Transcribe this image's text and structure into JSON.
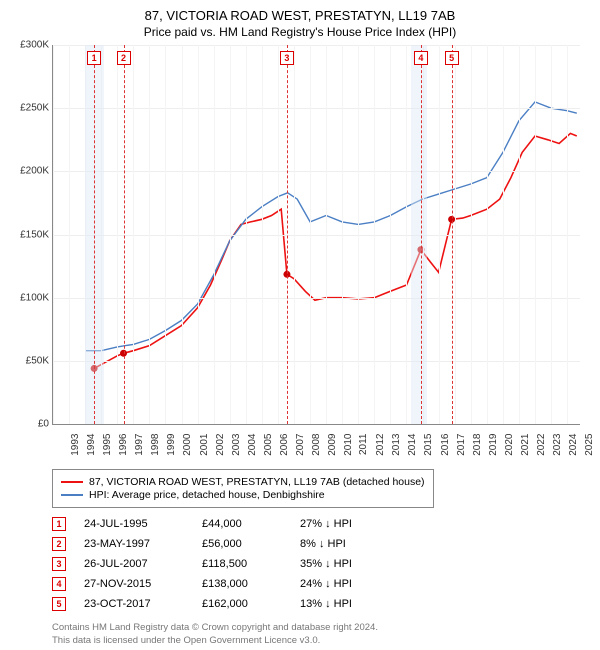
{
  "title": "87, VICTORIA ROAD WEST, PRESTATYN, LL19 7AB",
  "subtitle": "Price paid vs. HM Land Registry's House Price Index (HPI)",
  "chart": {
    "type": "line",
    "x_min_year": 1993,
    "x_max_year": 2025.8,
    "y_min": 0,
    "y_max": 300000,
    "y_ticks": [
      0,
      50000,
      100000,
      150000,
      200000,
      250000,
      300000
    ],
    "y_tick_labels": [
      "£0",
      "£50K",
      "£100K",
      "£150K",
      "£200K",
      "£250K",
      "£300K"
    ],
    "x_years": [
      1993,
      1994,
      1995,
      1996,
      1997,
      1998,
      1999,
      2000,
      2001,
      2002,
      2003,
      2004,
      2005,
      2006,
      2007,
      2008,
      2009,
      2010,
      2011,
      2012,
      2013,
      2014,
      2015,
      2016,
      2017,
      2018,
      2019,
      2020,
      2021,
      2022,
      2023,
      2024,
      2025
    ],
    "grid_color": "#eeeeee",
    "axis_color": "#888888",
    "background": "#ffffff",
    "band_color": "#dbe8f5",
    "bands": [
      {
        "start": 1995.0,
        "end": 1996.2
      },
      {
        "start": 2015.3,
        "end": 2016.3
      }
    ],
    "sale_vlines_color": "#d33",
    "series": [
      {
        "id": "property",
        "label": "87, VICTORIA ROAD WEST, PRESTATYN, LL19 7AB (detached house)",
        "color": "#e11",
        "line_width": 1.6,
        "points": [
          [
            1995.56,
            44000
          ],
          [
            1996.0,
            47000
          ],
          [
            1997.0,
            54000
          ],
          [
            1997.39,
            56000
          ],
          [
            1998.0,
            58000
          ],
          [
            1999.0,
            62000
          ],
          [
            2000.0,
            70000
          ],
          [
            2001.0,
            78000
          ],
          [
            2002.0,
            92000
          ],
          [
            2002.8,
            110000
          ],
          [
            2003.5,
            130000
          ],
          [
            2004.0,
            145000
          ],
          [
            2004.7,
            158000
          ],
          [
            2005.3,
            160000
          ],
          [
            2006.0,
            162000
          ],
          [
            2006.6,
            165000
          ],
          [
            2007.2,
            170000
          ],
          [
            2007.56,
            118500
          ],
          [
            2008.0,
            115000
          ],
          [
            2008.7,
            105000
          ],
          [
            2009.3,
            98000
          ],
          [
            2010.0,
            100000
          ],
          [
            2011.0,
            100000
          ],
          [
            2012.0,
            99000
          ],
          [
            2013.0,
            100000
          ],
          [
            2014.0,
            105000
          ],
          [
            2015.0,
            110000
          ],
          [
            2015.9,
            138000
          ],
          [
            2016.5,
            128000
          ],
          [
            2017.0,
            120000
          ],
          [
            2017.81,
            162000
          ],
          [
            2018.5,
            163000
          ],
          [
            2019.0,
            165000
          ],
          [
            2020.0,
            170000
          ],
          [
            2020.8,
            178000
          ],
          [
            2021.5,
            195000
          ],
          [
            2022.2,
            215000
          ],
          [
            2023.0,
            228000
          ],
          [
            2023.8,
            225000
          ],
          [
            2024.5,
            222000
          ],
          [
            2025.2,
            230000
          ],
          [
            2025.6,
            228000
          ]
        ]
      },
      {
        "id": "hpi",
        "label": "HPI: Average price, detached house, Denbighshire",
        "color": "#4b7fc4",
        "line_width": 1.4,
        "points": [
          [
            1995.0,
            58000
          ],
          [
            1996.0,
            58000
          ],
          [
            1997.0,
            61000
          ],
          [
            1998.0,
            63000
          ],
          [
            1999.0,
            67000
          ],
          [
            2000.0,
            74000
          ],
          [
            2001.0,
            82000
          ],
          [
            2002.0,
            95000
          ],
          [
            2003.0,
            118000
          ],
          [
            2004.0,
            145000
          ],
          [
            2005.0,
            162000
          ],
          [
            2006.0,
            172000
          ],
          [
            2007.0,
            180000
          ],
          [
            2007.6,
            183000
          ],
          [
            2008.2,
            178000
          ],
          [
            2009.0,
            160000
          ],
          [
            2010.0,
            165000
          ],
          [
            2011.0,
            160000
          ],
          [
            2012.0,
            158000
          ],
          [
            2013.0,
            160000
          ],
          [
            2014.0,
            165000
          ],
          [
            2015.0,
            172000
          ],
          [
            2016.0,
            178000
          ],
          [
            2017.0,
            182000
          ],
          [
            2018.0,
            186000
          ],
          [
            2019.0,
            190000
          ],
          [
            2020.0,
            195000
          ],
          [
            2021.0,
            215000
          ],
          [
            2022.0,
            240000
          ],
          [
            2023.0,
            255000
          ],
          [
            2024.0,
            250000
          ],
          [
            2025.0,
            248000
          ],
          [
            2025.6,
            246000
          ]
        ]
      }
    ],
    "sale_markers": [
      {
        "idx": "1",
        "date": "24-JUL-1995",
        "year": 1995.56,
        "price": 44000,
        "price_label": "£44,000",
        "diff": "27% ↓ HPI"
      },
      {
        "idx": "2",
        "date": "23-MAY-1997",
        "year": 1997.39,
        "price": 56000,
        "price_label": "£56,000",
        "diff": "8% ↓ HPI"
      },
      {
        "idx": "3",
        "date": "26-JUL-2007",
        "year": 2007.56,
        "price": 118500,
        "price_label": "£118,500",
        "diff": "35% ↓ HPI"
      },
      {
        "idx": "4",
        "date": "27-NOV-2015",
        "year": 2015.9,
        "price": 138000,
        "price_label": "£138,000",
        "diff": "24% ↓ HPI"
      },
      {
        "idx": "5",
        "date": "23-OCT-2017",
        "year": 2017.81,
        "price": 162000,
        "price_label": "£162,000",
        "diff": "13% ↓ HPI"
      }
    ],
    "marker_dot_color": "#c00",
    "marker_dot_radius": 3.5
  },
  "footer_line1": "Contains HM Land Registry data © Crown copyright and database right 2024.",
  "footer_line2": "This data is licensed under the Open Government Licence v3.0."
}
